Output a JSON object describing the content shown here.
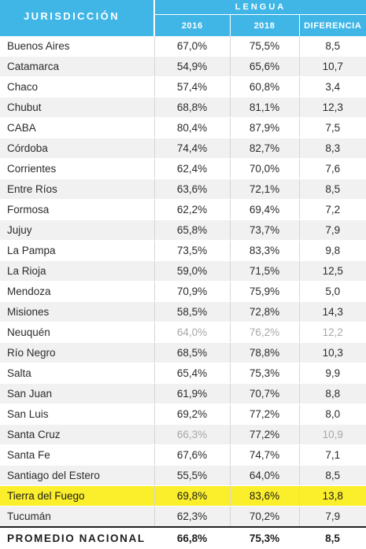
{
  "header": {
    "jurisdiccion": "JURISDICCIÓN",
    "lengua": "LENGUA",
    "col_2016": "2016",
    "col_2018": "2018",
    "col_diferencia": "DIFERENCIA"
  },
  "colors": {
    "header_bg": "#3fb6e6",
    "highlight": "#fbef2b",
    "muted_text": "#a8a8a8"
  },
  "rows": [
    {
      "name": "Buenos Aires",
      "v2016": "67,0%",
      "v2018": "75,5%",
      "dif": "8,5"
    },
    {
      "name": "Catamarca",
      "v2016": "54,9%",
      "v2018": "65,6%",
      "dif": "10,7"
    },
    {
      "name": "Chaco",
      "v2016": "57,4%",
      "v2018": "60,8%",
      "dif": "3,4"
    },
    {
      "name": "Chubut",
      "v2016": "68,8%",
      "v2018": "81,1%",
      "dif": "12,3"
    },
    {
      "name": "CABA",
      "v2016": "80,4%",
      "v2018": "87,9%",
      "dif": "7,5"
    },
    {
      "name": "Córdoba",
      "v2016": "74,4%",
      "v2018": "82,7%",
      "dif": "8,3"
    },
    {
      "name": "Corrientes",
      "v2016": "62,4%",
      "v2018": "70,0%",
      "dif": "7,6"
    },
    {
      "name": "Entre Ríos",
      "v2016": "63,6%",
      "v2018": "72,1%",
      "dif": "8,5"
    },
    {
      "name": "Formosa",
      "v2016": "62,2%",
      "v2018": "69,4%",
      "dif": "7,2"
    },
    {
      "name": "Jujuy",
      "v2016": "65,8%",
      "v2018": "73,7%",
      "dif": "7,9"
    },
    {
      "name": "La Pampa",
      "v2016": "73,5%",
      "v2018": "83,3%",
      "dif": "9,8"
    },
    {
      "name": "La Rioja",
      "v2016": "59,0%",
      "v2018": "71,5%",
      "dif": "12,5"
    },
    {
      "name": "Mendoza",
      "v2016": "70,9%",
      "v2018": "75,9%",
      "dif": "5,0"
    },
    {
      "name": "Misiones",
      "v2016": "58,5%",
      "v2018": "72,8%",
      "dif": "14,3"
    },
    {
      "name": "Neuquén",
      "v2016": "64,0%",
      "v2018": "76,2%",
      "dif": "12,2"
    },
    {
      "name": "Río Negro",
      "v2016": "68,5%",
      "v2018": "78,8%",
      "dif": "10,3"
    },
    {
      "name": "Salta",
      "v2016": "65,4%",
      "v2018": "75,3%",
      "dif": "9,9"
    },
    {
      "name": "San Juan",
      "v2016": "61,9%",
      "v2018": "70,7%",
      "dif": "8,8"
    },
    {
      "name": "San Luis",
      "v2016": "69,2%",
      "v2018": "77,2%",
      "dif": "8,0"
    },
    {
      "name": "Santa Cruz",
      "v2016": "66,3%",
      "v2018": "77,2%",
      "dif": "10,9"
    },
    {
      "name": "Santa Fe",
      "v2016": "67,6%",
      "v2018": "74,7%",
      "dif": "7,1"
    },
    {
      "name": "Santiago del Estero",
      "v2016": "55,5%",
      "v2018": "64,0%",
      "dif": "8,5"
    },
    {
      "name": "Tierra del Fuego",
      "v2016": "69,8%",
      "v2018": "83,6%",
      "dif": "13,8"
    },
    {
      "name": "Tucumán",
      "v2016": "62,3%",
      "v2018": "70,2%",
      "dif": "7,9"
    }
  ],
  "total": {
    "name": "PROMEDIO NACIONAL",
    "v2016": "66,8%",
    "v2018": "75,3%",
    "dif": "8,5"
  }
}
